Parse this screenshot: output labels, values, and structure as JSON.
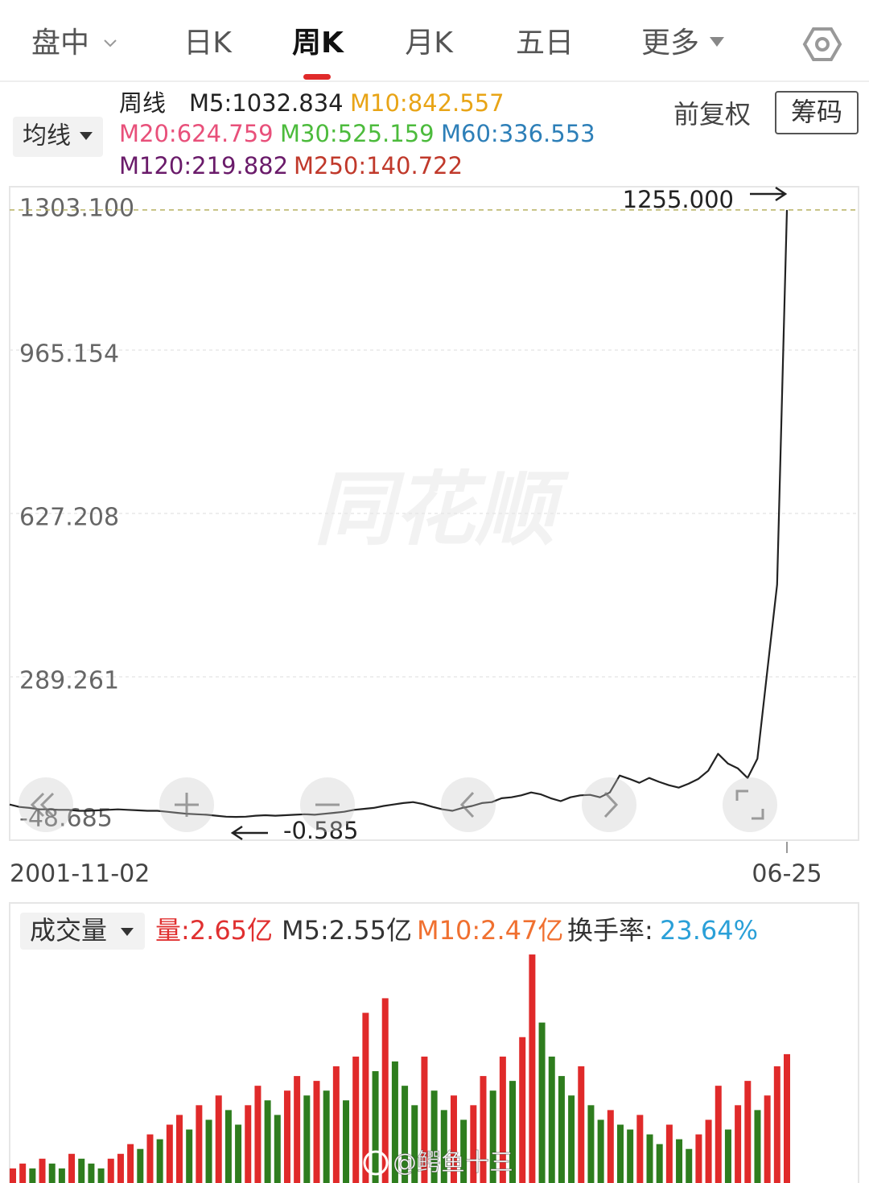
{
  "tabs": [
    "盘中",
    "日K",
    "周K",
    "月K",
    "五日",
    "更多"
  ],
  "active_tab": 2,
  "ma_button": "均线",
  "ma_legend": [
    {
      "text": "周线",
      "color": "#222222"
    },
    {
      "text": "M5:1032.834",
      "color": "#222222"
    },
    {
      "text": "M10:842.557",
      "color": "#e8a416"
    },
    {
      "text": "M20:624.759",
      "color": "#e8507a"
    },
    {
      "text": "M30:525.159",
      "color": "#4cbb3c"
    },
    {
      "text": "M60:336.553",
      "color": "#2d7fb8"
    },
    {
      "text": "M120:219.882",
      "color": "#6a1b6a"
    },
    {
      "text": "M250:140.722",
      "color": "#c0392b"
    }
  ],
  "adjust": "前复权",
  "chips": "筹码",
  "watermark": "同花顺",
  "credit": "@鳄鱼十三",
  "chart_data": [
    {
      "type": "line",
      "ylim": [
        -48.685,
        1303.1
      ],
      "yticks": [
        -48.685,
        289.261,
        627.208,
        965.154,
        {
          "value": 1303.1,
          "label": "1303.100"
        }
      ],
      "grid": true,
      "x_labels": [
        "2001-11-02",
        "06-25"
      ],
      "max_annotation": {
        "value": 1255,
        "label": "1255.000"
      },
      "min_annotation": -0.585,
      "series": [
        {
          "color": "#222222",
          "values": [
            25,
            20,
            18,
            15,
            15,
            14,
            14,
            12,
            12,
            13,
            14,
            15,
            14,
            13,
            12,
            12,
            10,
            8,
            6,
            5,
            4,
            2,
            0,
            -0.585,
            0,
            2,
            3,
            2,
            3,
            4,
            5,
            4,
            6,
            8,
            10,
            14,
            16,
            18,
            22,
            25,
            28,
            30,
            26,
            20,
            15,
            12,
            18,
            22,
            28,
            30,
            38,
            40,
            44,
            50,
            46,
            38,
            32,
            40,
            44,
            45,
            40,
            50,
            85,
            78,
            70,
            80,
            72,
            65,
            60,
            68,
            78,
            95,
            130,
            110,
            100,
            80,
            120,
            300,
            480,
            1255
          ]
        }
      ]
    },
    {
      "type": "bar",
      "button": "成交量",
      "legend": [
        {
          "text": "量:2.65亿",
          "color": "#e03030"
        },
        {
          "text": "M5:2.55亿",
          "color": "#333333"
        },
        {
          "text": "M10:2.47亿",
          "color": "#f07030"
        },
        {
          "text": "换手率:",
          "color": "#333333"
        },
        {
          "text": "23.64%",
          "color": "#2aa0d8"
        }
      ],
      "ylim": [
        0,
        4.8
      ],
      "up_color": "#e02a2a",
      "down_color": "#2e7d1e",
      "values": [
        0.3,
        0.4,
        0.3,
        0.5,
        0.4,
        0.3,
        0.6,
        0.5,
        0.4,
        0.3,
        0.5,
        0.6,
        0.8,
        0.7,
        1.0,
        0.9,
        1.2,
        1.4,
        1.1,
        1.6,
        1.3,
        1.8,
        1.5,
        1.2,
        1.6,
        2.0,
        1.7,
        1.4,
        1.9,
        2.2,
        1.8,
        2.1,
        1.9,
        2.4,
        1.7,
        2.6,
        3.5,
        2.3,
        3.8,
        2.5,
        2.0,
        1.6,
        2.6,
        1.9,
        1.5,
        1.8,
        1.3,
        1.6,
        2.2,
        1.9,
        2.6,
        2.1,
        3.0,
        4.7,
        3.3,
        2.6,
        2.2,
        1.8,
        2.4,
        1.6,
        1.3,
        1.5,
        1.2,
        1.1,
        1.4,
        1.0,
        0.8,
        1.2,
        0.9,
        0.7,
        1.0,
        1.3,
        2.0,
        1.1,
        1.6,
        2.1,
        1.5,
        1.8,
        2.4,
        2.65
      ]
    }
  ]
}
